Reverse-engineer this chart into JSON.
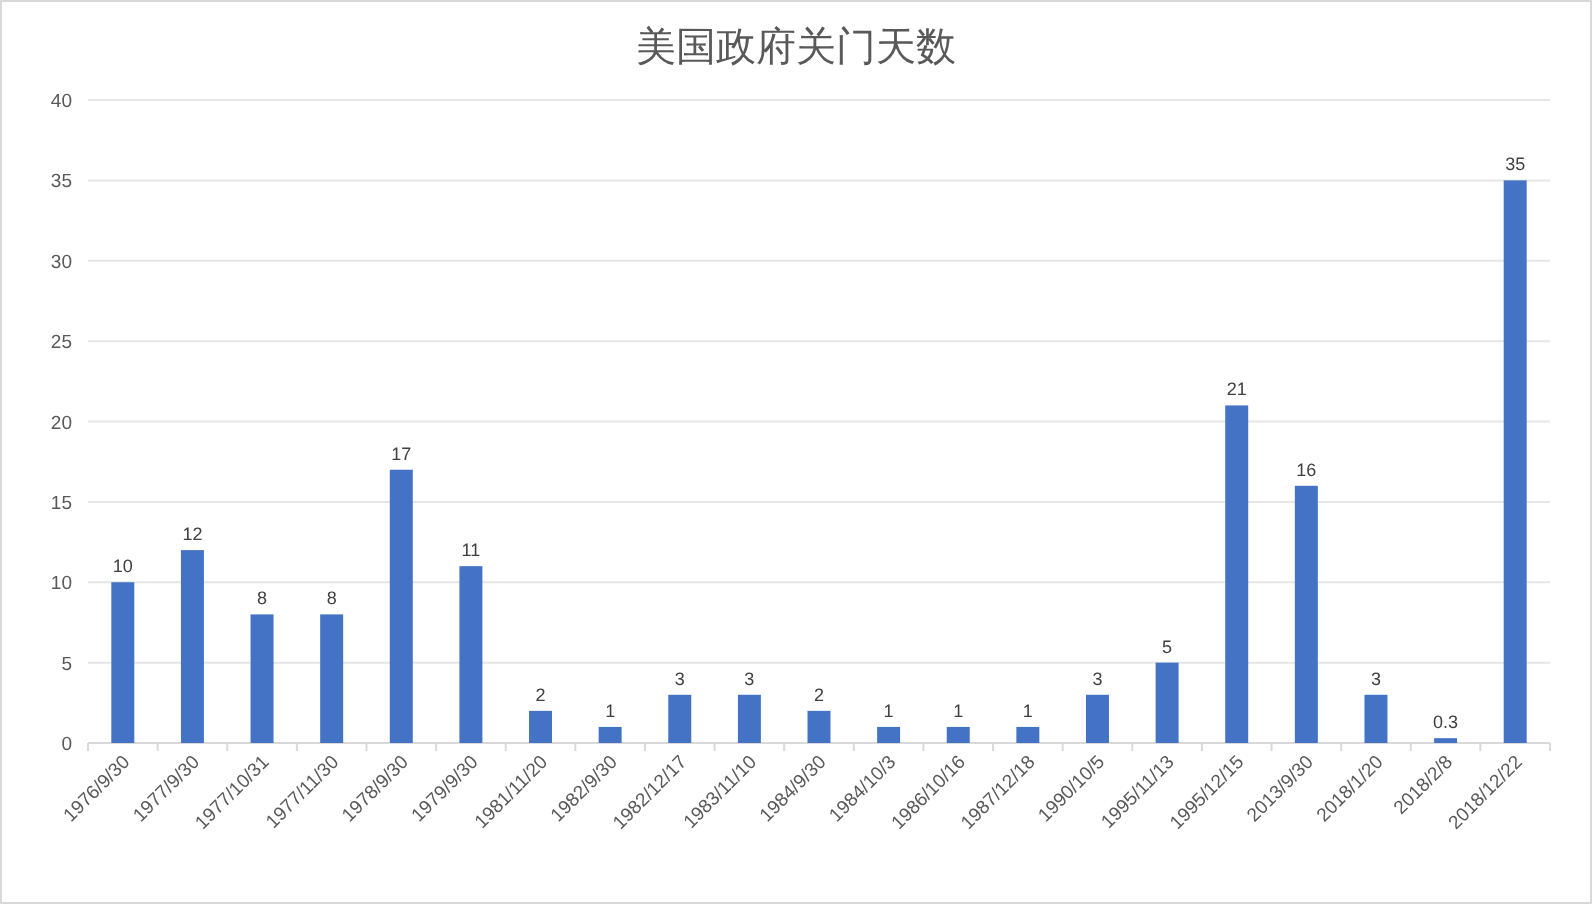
{
  "chart_data": {
    "type": "bar",
    "title": "美国政府关门天数",
    "categories": [
      "1976/9/30",
      "1977/9/30",
      "1977/10/31",
      "1977/11/30",
      "1978/9/30",
      "1979/9/30",
      "1981/11/20",
      "1982/9/30",
      "1982/12/17",
      "1983/11/10",
      "1984/9/30",
      "1984/10/3",
      "1986/10/16",
      "1987/12/18",
      "1990/10/5",
      "1995/11/13",
      "1995/12/15",
      "2013/9/30",
      "2018/1/20",
      "2018/2/8",
      "2018/12/22"
    ],
    "values": [
      10,
      12,
      8,
      8,
      17,
      11,
      2,
      1,
      3,
      3,
      2,
      1,
      1,
      1,
      3,
      5,
      21,
      16,
      3,
      0.3,
      35
    ],
    "color": "#4472c4",
    "ylim": [
      0,
      40
    ],
    "yticks": [
      0,
      5,
      10,
      15,
      20,
      25,
      30,
      35,
      40
    ],
    "grid": "y",
    "data_labels": true
  }
}
